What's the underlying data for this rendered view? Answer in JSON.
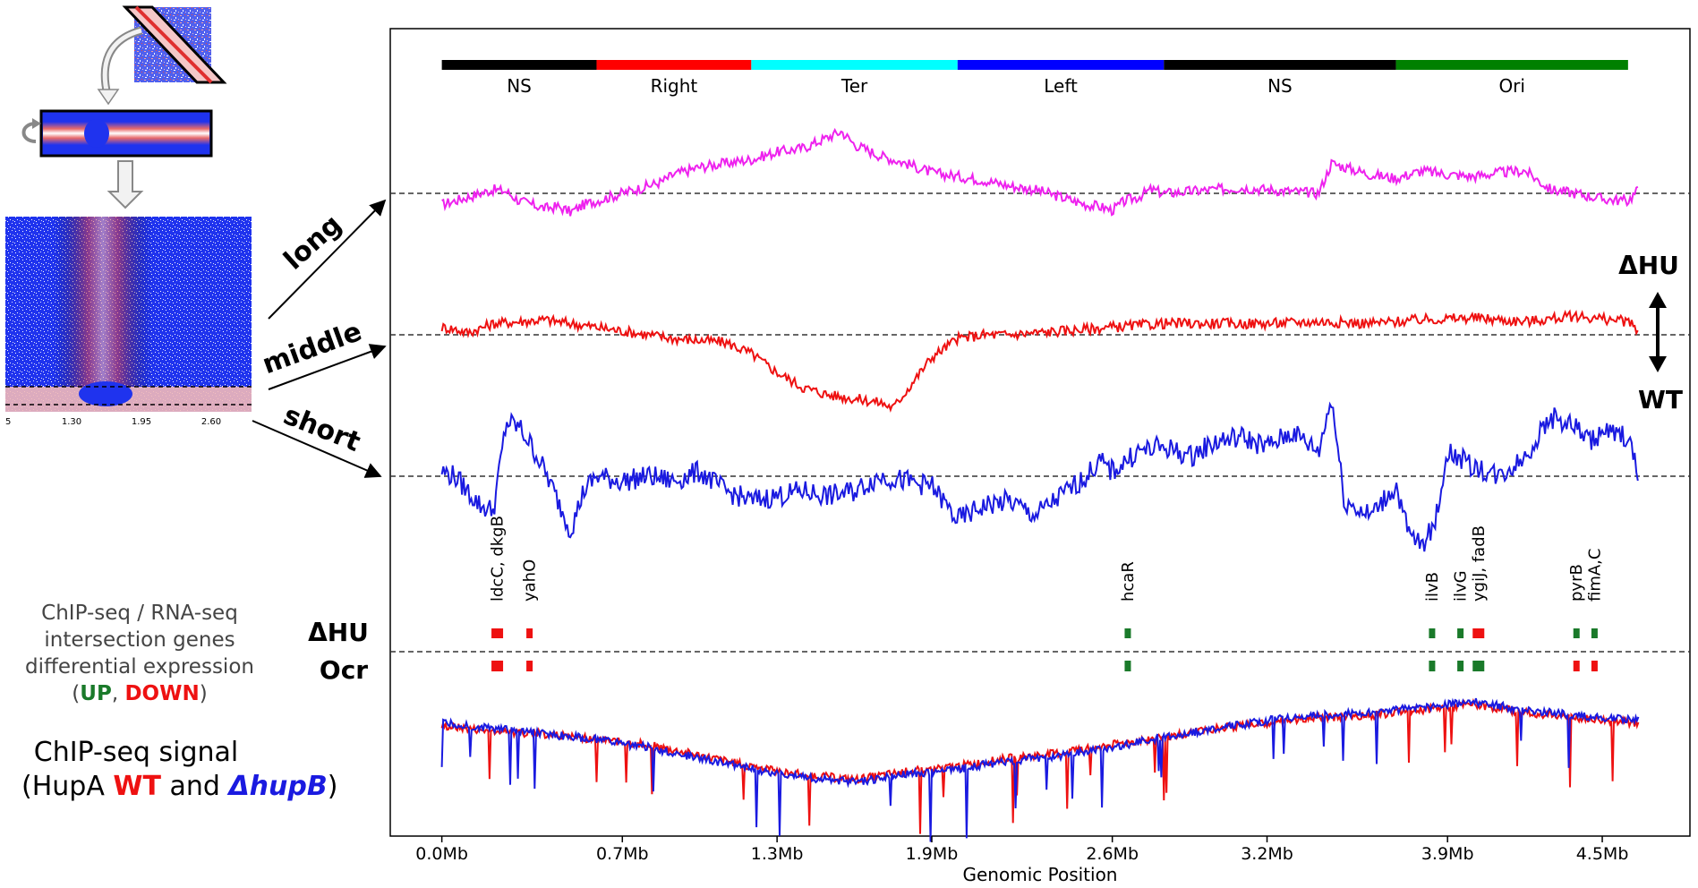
{
  "left_panel": {
    "arrow_labels": [
      "long",
      "middle",
      "short"
    ],
    "heatmap_ticks": [
      "5",
      "1.30",
      "1.95",
      "2.60"
    ],
    "legend_genes_lines": [
      "ChIP-seq / RNA-seq",
      "intersection genes",
      "differential expression"
    ],
    "legend_up": "UP",
    "legend_sep": ", ",
    "legend_down": "DOWN",
    "legend_open": "(",
    "legend_close": ")",
    "chip_line1": "ChIP-seq signal",
    "chip_prefix": "(HupA ",
    "chip_wt": "WT",
    "chip_and": " and ",
    "chip_mut": "ΔhupB",
    "chip_suffix": ")"
  },
  "colors": {
    "up": "#1a7a2a",
    "down": "#ee1111",
    "long": "#ee22ee",
    "middle": "#ee1111",
    "short": "#1a1ae0",
    "wt": "#ee1111",
    "mut": "#1a1ae0"
  },
  "chart_data": {
    "type": "line",
    "xlabel": "Genomic Position",
    "x_ticks": [
      0.0,
      0.7,
      1.3,
      1.9,
      2.6,
      3.2,
      3.9,
      4.5
    ],
    "x_tick_labels": [
      "0.0Mb",
      "0.7Mb",
      "1.3Mb",
      "1.9Mb",
      "2.6Mb",
      "3.2Mb",
      "3.9Mb",
      "4.5Mb"
    ],
    "xlim": [
      -0.2,
      4.84
    ],
    "genome_length": 4.64,
    "macrodomains": [
      {
        "name": "NS",
        "start": 0.0,
        "end": 0.6,
        "color": "#000000"
      },
      {
        "name": "Right",
        "start": 0.6,
        "end": 1.2,
        "color": "#ff0000"
      },
      {
        "name": "Ter",
        "start": 1.2,
        "end": 2.0,
        "color": "#00ffff"
      },
      {
        "name": "Left",
        "start": 2.0,
        "end": 2.8,
        "color": "#0000ff"
      },
      {
        "name": "NS",
        "start": 2.8,
        "end": 3.7,
        "color": "#000000"
      },
      {
        "name": "Ori",
        "start": 3.7,
        "end": 4.6,
        "color": "#008000"
      }
    ],
    "contrast_labels": {
      "top": "ΔHU",
      "bottom": "WT"
    },
    "row_labels": {
      "top": "ΔHU",
      "bottom": "Ocr"
    },
    "series": [
      {
        "name": "long",
        "x": [
          0.0,
          0.05,
          0.1,
          0.15,
          0.2,
          0.25,
          0.3,
          0.35,
          0.4,
          0.45,
          0.5,
          0.55,
          0.6,
          0.65,
          0.7,
          0.75,
          0.8,
          0.85,
          0.9,
          1.0,
          1.1,
          1.2,
          1.3,
          1.4,
          1.5,
          1.55,
          1.6,
          1.7,
          1.8,
          1.9,
          2.0,
          2.1,
          2.2,
          2.3,
          2.4,
          2.5,
          2.55,
          2.6,
          2.65,
          2.7,
          2.75,
          2.8,
          2.9,
          3.0,
          3.1,
          3.2,
          3.3,
          3.4,
          3.45,
          3.5,
          3.6,
          3.7,
          3.8,
          3.9,
          4.0,
          4.1,
          4.2,
          4.3,
          4.4,
          4.5,
          4.6,
          4.64
        ],
        "y": [
          -0.3,
          -0.2,
          -0.1,
          0.0,
          0.1,
          0.05,
          -0.2,
          -0.3,
          -0.4,
          -0.35,
          -0.5,
          -0.3,
          -0.2,
          -0.1,
          0.0,
          0.1,
          0.2,
          0.3,
          0.5,
          0.7,
          0.8,
          0.9,
          1.1,
          1.2,
          1.5,
          1.65,
          1.3,
          1.0,
          0.8,
          0.55,
          0.45,
          0.35,
          0.2,
          0.1,
          -0.1,
          -0.3,
          -0.35,
          -0.45,
          -0.2,
          -0.1,
          0.1,
          0.0,
          0.05,
          0.1,
          0.15,
          0.1,
          0.05,
          0.0,
          0.8,
          0.7,
          0.5,
          0.4,
          0.6,
          0.5,
          0.45,
          0.55,
          0.6,
          0.1,
          0.0,
          -0.15,
          -0.2,
          0.1
        ]
      },
      {
        "name": "middle",
        "x": [
          0.0,
          0.05,
          0.1,
          0.2,
          0.3,
          0.4,
          0.5,
          0.6,
          0.7,
          0.8,
          0.9,
          1.0,
          1.1,
          1.2,
          1.3,
          1.4,
          1.5,
          1.6,
          1.7,
          1.75,
          1.8,
          1.9,
          2.0,
          2.1,
          2.2,
          2.4,
          2.6,
          2.8,
          3.0,
          3.2,
          3.4,
          3.6,
          3.8,
          4.0,
          4.2,
          4.4,
          4.6,
          4.64
        ],
        "y": [
          0.2,
          0.15,
          0.05,
          0.3,
          0.35,
          0.4,
          0.3,
          0.2,
          0.1,
          0.0,
          -0.1,
          -0.15,
          -0.2,
          -0.5,
          -1.0,
          -1.4,
          -1.6,
          -1.7,
          -1.8,
          -1.95,
          -1.5,
          -0.6,
          -0.1,
          0.0,
          0.0,
          0.1,
          0.2,
          0.3,
          0.3,
          0.3,
          0.35,
          0.3,
          0.4,
          0.45,
          0.35,
          0.5,
          0.35,
          0.1
        ]
      },
      {
        "name": "short",
        "x": [
          0.0,
          0.05,
          0.1,
          0.15,
          0.2,
          0.25,
          0.3,
          0.35,
          0.4,
          0.45,
          0.5,
          0.55,
          0.6,
          0.7,
          0.8,
          0.9,
          1.0,
          1.1,
          1.2,
          1.3,
          1.4,
          1.5,
          1.6,
          1.7,
          1.8,
          1.9,
          2.0,
          2.1,
          2.2,
          2.3,
          2.4,
          2.5,
          2.55,
          2.6,
          2.7,
          2.8,
          2.9,
          3.0,
          3.1,
          3.2,
          3.3,
          3.4,
          3.45,
          3.5,
          3.6,
          3.7,
          3.75,
          3.8,
          3.85,
          3.9,
          4.0,
          4.1,
          4.2,
          4.3,
          4.4,
          4.45,
          4.5,
          4.6,
          4.64
        ],
        "y": [
          0.1,
          0.0,
          -0.3,
          -0.6,
          -0.7,
          1.1,
          1.0,
          0.6,
          0.1,
          -0.5,
          -1.1,
          -0.3,
          0.0,
          -0.1,
          0.0,
          -0.1,
          0.1,
          -0.3,
          -0.5,
          -0.4,
          -0.3,
          -0.4,
          -0.3,
          0.0,
          -0.1,
          -0.2,
          -0.9,
          -0.6,
          -0.5,
          -0.8,
          -0.4,
          0.0,
          0.3,
          0.1,
          0.5,
          0.6,
          0.4,
          0.7,
          0.8,
          0.6,
          0.9,
          0.5,
          1.6,
          -0.5,
          -0.8,
          -0.2,
          -1.2,
          -1.4,
          -1.0,
          0.5,
          0.2,
          0.0,
          0.4,
          1.2,
          1.0,
          0.7,
          0.9,
          0.8,
          0.0
        ]
      }
    ],
    "chip_series": [
      {
        "name": "WT",
        "x": [
          0.0,
          0.2,
          0.4,
          0.6,
          0.8,
          1.0,
          1.2,
          1.4,
          1.6,
          1.8,
          2.0,
          2.2,
          2.4,
          2.6,
          2.8,
          3.0,
          3.2,
          3.4,
          3.6,
          3.8,
          4.0,
          4.2,
          4.4,
          4.64
        ],
        "y": [
          0.35,
          0.25,
          0.2,
          0.1,
          0.0,
          -0.2,
          -0.4,
          -0.55,
          -0.65,
          -0.5,
          -0.4,
          -0.25,
          -0.15,
          0.0,
          0.15,
          0.3,
          0.4,
          0.5,
          0.55,
          0.65,
          0.75,
          0.6,
          0.5,
          0.4
        ]
      },
      {
        "name": "ΔhupB",
        "x": [
          0.0,
          0.2,
          0.4,
          0.6,
          0.8,
          1.0,
          1.2,
          1.4,
          1.6,
          1.8,
          2.0,
          2.2,
          2.4,
          2.6,
          2.8,
          3.0,
          3.2,
          3.4,
          3.6,
          3.8,
          4.0,
          4.2,
          4.4,
          4.64
        ],
        "y": [
          0.4,
          0.3,
          0.2,
          0.1,
          -0.05,
          -0.25,
          -0.45,
          -0.6,
          -0.7,
          -0.55,
          -0.45,
          -0.3,
          -0.2,
          -0.05,
          0.15,
          0.3,
          0.45,
          0.55,
          0.6,
          0.7,
          0.8,
          0.65,
          0.55,
          0.45
        ]
      }
    ],
    "genes": [
      {
        "label": "ldcC, dkgB",
        "x": 0.215,
        "dhu": "down",
        "ocr": "down",
        "wide": true
      },
      {
        "label": "yahO",
        "x": 0.34,
        "dhu": "down",
        "ocr": "down",
        "wide": false
      },
      {
        "label": "hcaR",
        "x": 2.66,
        "dhu": "up",
        "ocr": "up",
        "wide": false
      },
      {
        "label": "ilvB",
        "x": 3.84,
        "dhu": "up",
        "ocr": "up",
        "wide": false
      },
      {
        "label": "ilvG",
        "x": 3.95,
        "dhu": "up",
        "ocr": "up",
        "wide": false
      },
      {
        "label": "ygiJ, fadB",
        "x": 4.02,
        "dhu": "down",
        "ocr": "up",
        "wide": true
      },
      {
        "label": "pyrB",
        "x": 4.4,
        "dhu": "up",
        "ocr": "down",
        "wide": false
      },
      {
        "label": "fimA,C",
        "x": 4.47,
        "dhu": "up",
        "ocr": "down",
        "wide": false
      }
    ]
  }
}
